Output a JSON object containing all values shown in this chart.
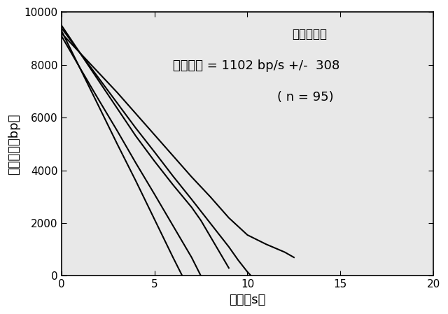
{
  "xlabel": "時間（s）",
  "ylabel": "テザー長（bp）",
  "annotation_line1": "プロヘッド",
  "annotation_line2": "平均速度 = 1102 bp/s +/-  308",
  "annotation_line3": "( n = 95)",
  "xlim": [
    0,
    20
  ],
  "ylim": [
    0,
    10000
  ],
  "xticks": [
    0,
    5,
    10,
    15,
    20
  ],
  "yticks": [
    0,
    2000,
    4000,
    6000,
    8000,
    10000
  ],
  "lines": [
    {
      "x": [
        0.0,
        1.0,
        2.0,
        3.0,
        4.0,
        5.0,
        6.0,
        6.5
      ],
      "y": [
        9300,
        7870,
        6440,
        5000,
        3600,
        2150,
        700,
        0
      ]
    },
    {
      "x": [
        0.0,
        1.0,
        2.0,
        3.0,
        4.0,
        5.0,
        6.0,
        7.0,
        7.5
      ],
      "y": [
        9100,
        7880,
        6680,
        5500,
        4280,
        3100,
        1900,
        700,
        0
      ]
    },
    {
      "x": [
        0.0,
        1.0,
        2.0,
        3.0,
        4.0,
        5.0,
        6.0,
        7.0,
        7.5,
        8.0,
        8.5,
        9.0
      ],
      "y": [
        9500,
        8450,
        7400,
        6350,
        5300,
        4350,
        3450,
        2600,
        2100,
        1500,
        900,
        300
      ]
    },
    {
      "x": [
        0.0,
        1.0,
        2.0,
        3.0,
        4.0,
        5.0,
        6.0,
        7.0,
        8.0,
        9.0,
        9.5,
        10.0,
        10.2
      ],
      "y": [
        9400,
        8450,
        7500,
        6550,
        5600,
        4700,
        3780,
        2900,
        2000,
        1100,
        600,
        150,
        0
      ]
    },
    {
      "x": [
        0.0,
        1.0,
        2.0,
        3.0,
        4.0,
        5.0,
        6.0,
        7.0,
        8.0,
        9.0,
        10.0,
        11.0,
        12.0,
        12.5
      ],
      "y": [
        9200,
        8450,
        7700,
        6950,
        6150,
        5350,
        4550,
        3750,
        3000,
        2200,
        1550,
        1200,
        900,
        700
      ]
    }
  ],
  "line_color": "#000000",
  "line_width": 1.5,
  "bg_color": "#ffffff",
  "plot_bg_color": "#e8e8e8",
  "font_size_label": 13,
  "font_size_tick": 11,
  "font_size_annotation1": 12,
  "font_size_annotation2": 13,
  "font_size_annotation3": 13
}
